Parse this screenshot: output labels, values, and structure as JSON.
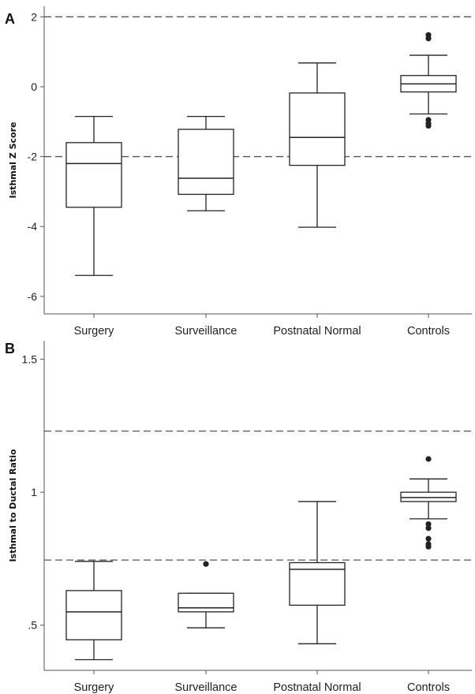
{
  "chart_data": [
    {
      "type": "box",
      "panel_label": "A",
      "ylabel": "Isthmal Z Score",
      "ylim": [
        -6.5,
        2.3
      ],
      "yticks": [
        2,
        0,
        -2,
        -4,
        -6
      ],
      "ytick_labels": [
        "2",
        "0",
        "-2",
        "-4",
        "-6"
      ],
      "reference_lines": [
        2,
        -2
      ],
      "categories": [
        "Surgery",
        "Surveillance",
        "Postnatal Normal",
        "Controls"
      ],
      "boxes": [
        {
          "category": "Surgery",
          "whisker_low": -5.4,
          "q1": -3.45,
          "median": -2.2,
          "q3": -1.6,
          "whisker_high": -0.85,
          "outliers": []
        },
        {
          "category": "Surveillance",
          "whisker_low": -3.55,
          "q1": -3.08,
          "median": -2.62,
          "q3": -1.22,
          "whisker_high": -0.85,
          "outliers": []
        },
        {
          "category": "Postnatal Normal",
          "whisker_low": -4.02,
          "q1": -2.25,
          "median": -1.45,
          "q3": -0.18,
          "whisker_high": 0.68,
          "outliers": []
        },
        {
          "category": "Controls",
          "whisker_low": -0.78,
          "q1": -0.15,
          "median": 0.08,
          "q3": 0.32,
          "whisker_high": 0.9,
          "outliers": [
            1.38,
            1.48,
            -0.95,
            -1.05,
            -1.12
          ]
        }
      ]
    },
    {
      "type": "box",
      "panel_label": "B",
      "ylabel": "Isthmal to Ductal Ratio",
      "ylim": [
        0.33,
        1.57
      ],
      "yticks": [
        1.5,
        1.0,
        0.5
      ],
      "ytick_labels": [
        "1.5",
        "1",
        ".5"
      ],
      "reference_lines": [
        1.23,
        0.745
      ],
      "categories": [
        "Surgery",
        "Surveillance",
        "Postnatal Normal",
        "Controls"
      ],
      "boxes": [
        {
          "category": "Surgery",
          "whisker_low": 0.37,
          "q1": 0.445,
          "median": 0.55,
          "q3": 0.63,
          "whisker_high": 0.74,
          "outliers": []
        },
        {
          "category": "Surveillance",
          "whisker_low": 0.49,
          "q1": 0.55,
          "median": 0.565,
          "q3": 0.62,
          "whisker_high": 0.62,
          "outliers": [
            0.73
          ]
        },
        {
          "category": "Postnatal Normal",
          "whisker_low": 0.43,
          "q1": 0.575,
          "median": 0.71,
          "q3": 0.735,
          "whisker_high": 0.965,
          "outliers": []
        },
        {
          "category": "Controls",
          "whisker_low": 0.9,
          "q1": 0.965,
          "median": 0.98,
          "q3": 1.0,
          "whisker_high": 1.05,
          "outliers": [
            1.125,
            0.88,
            0.865,
            0.825,
            0.805,
            0.795
          ]
        }
      ]
    }
  ]
}
